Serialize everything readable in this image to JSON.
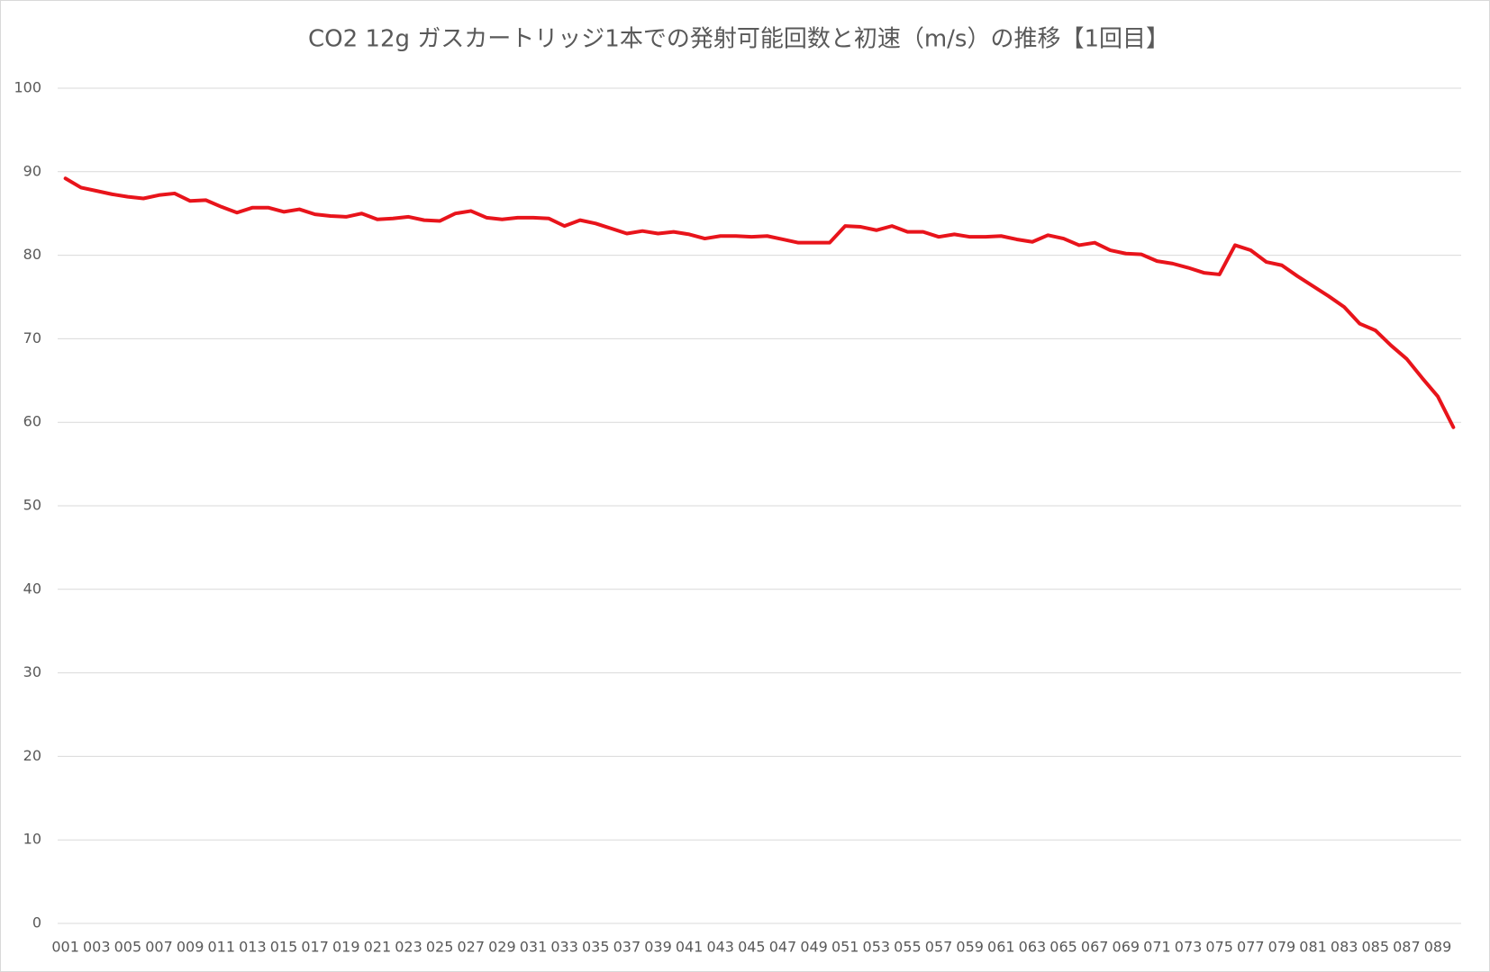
{
  "chart_data": {
    "type": "line",
    "title": "CO2 12g ガスカートリッジ1本での発射可能回数と初速（m/s）の推移【1回目】",
    "categories": [
      "001",
      null,
      "003",
      null,
      "005",
      null,
      "007",
      null,
      "009",
      null,
      "011",
      null,
      "013",
      null,
      "015",
      null,
      "017",
      null,
      "019",
      null,
      "021",
      null,
      "023",
      null,
      "025",
      null,
      "027",
      null,
      "029",
      null,
      "031",
      null,
      "033",
      null,
      "035",
      null,
      "037",
      null,
      "039",
      null,
      "041",
      null,
      "043",
      null,
      "045",
      null,
      "047",
      null,
      "049",
      null,
      "051",
      null,
      "053",
      null,
      "055",
      null,
      "057",
      null,
      "059",
      null,
      "061",
      null,
      "063",
      null,
      "065",
      null,
      "067",
      null,
      "069",
      null,
      "071",
      null,
      "073",
      null,
      "075",
      null,
      "077",
      null,
      "079",
      null,
      "081",
      null,
      "083",
      null,
      "085",
      null,
      "087",
      null,
      "089",
      null
    ],
    "values": [
      89.2,
      88.1,
      87.7,
      87.3,
      87.0,
      86.8,
      87.2,
      87.4,
      86.5,
      86.6,
      85.8,
      85.1,
      85.7,
      85.7,
      85.2,
      85.5,
      84.9,
      84.7,
      84.6,
      85.0,
      84.3,
      84.4,
      84.6,
      84.2,
      84.1,
      85.0,
      85.3,
      84.5,
      84.3,
      84.5,
      84.5,
      84.4,
      83.5,
      84.2,
      83.8,
      83.2,
      82.6,
      82.9,
      82.6,
      82.8,
      82.5,
      82.0,
      82.3,
      82.3,
      82.2,
      82.3,
      81.9,
      81.5,
      81.5,
      81.5,
      83.5,
      83.4,
      83.0,
      83.5,
      82.8,
      82.8,
      82.2,
      82.5,
      82.2,
      82.2,
      82.3,
      81.9,
      81.6,
      82.4,
      82.0,
      81.2,
      81.5,
      80.6,
      80.2,
      80.1,
      79.3,
      79.0,
      78.5,
      77.9,
      77.7,
      81.2,
      80.6,
      79.2,
      78.8,
      77.5,
      76.3,
      75.1,
      73.8,
      71.8,
      71.0,
      69.2,
      67.6,
      65.3,
      63.1,
      59.4
    ],
    "color": "#e8141b",
    "ylim": [
      0,
      100
    ],
    "yticks": [
      0,
      10,
      20,
      30,
      40,
      50,
      60,
      70,
      80,
      90,
      100
    ],
    "grid": true
  }
}
